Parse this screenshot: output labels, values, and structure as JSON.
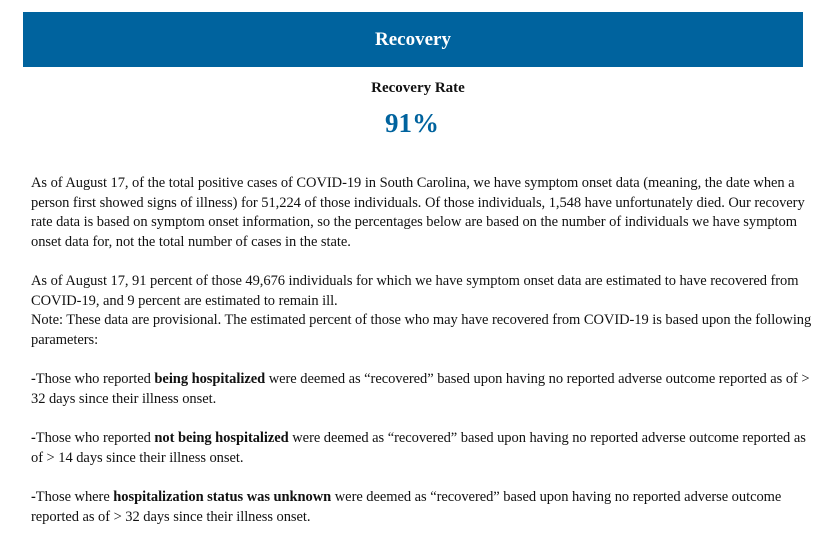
{
  "banner": {
    "title": "Recovery"
  },
  "recovery": {
    "label": "Recovery Rate",
    "value": "91%"
  },
  "paragraphs": {
    "intro": "As of August 17, of the total positive cases of COVID-19 in South Carolina, we have symptom onset data (meaning, the date when a person first showed signs of illness) for 51,224 of those individuals. Of those individuals, 1,548 have unfortunately died. Our recovery rate data is based on symptom onset information, so the percentages below are based on the number of individuals we have symptom onset data for, not the total number of cases in the state.",
    "estimate": "As of August 17, 91 percent of those 49,676 individuals for which we have symptom onset data are estimated to have recovered from COVID-19, and 9 percent are estimated to remain ill.",
    "note": "Note: These data are provisional. The estimated percent of those who may have recovered from COVID-19 is based upon the following parameters:"
  },
  "parameters": [
    {
      "dash": "-",
      "lead": "Those who reported ",
      "highlight": "being hospitalized",
      "rest": " were deemed as “recovered” based upon having no reported adverse outcome reported as of > 32 days since their illness onset."
    },
    {
      "dash": "-",
      "lead": "Those who reported ",
      "highlight": "not being hospitalized",
      "rest": " were deemed as “recovered” based upon having no reported adverse outcome reported as of > 14 days since their illness onset."
    },
    {
      "dash": "-",
      "lead": "Those where ",
      "highlight": "hospitalization status was unknown",
      "rest": " were deemed as “recovered” based upon having no reported adverse outcome reported as of > 32 days since their illness onset."
    }
  ],
  "colors": {
    "banner": "#00639e",
    "rate_value": "#00639e"
  }
}
